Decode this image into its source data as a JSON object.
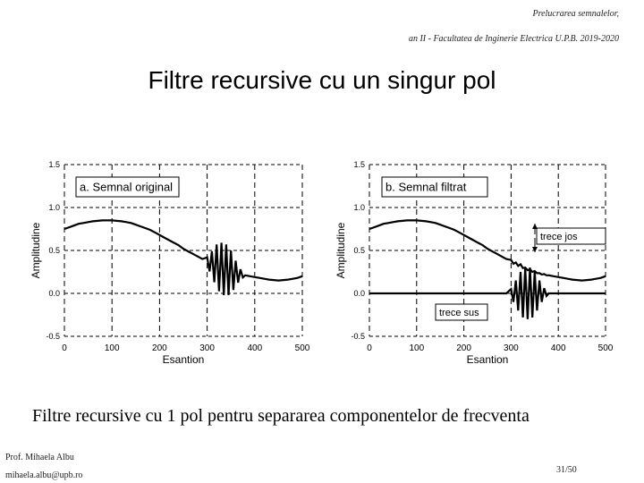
{
  "header": {
    "line1": "Prelucrarea semnalelor,",
    "line2": "an II - Facultatea de Inginerie Electrica U.P.B. 2019-2020"
  },
  "title": "Filtre recursive cu un singur pol",
  "caption": "Filtre recursive cu 1 pol pentru separarea componentelor de frecventa",
  "footer": {
    "author": "Prof. Mihaela Albu",
    "email": "mihaela.albu@upb.ro",
    "page": "31/50"
  },
  "chart_data": [
    {
      "type": "line",
      "annotations": [
        "a. Semnal original"
      ],
      "xlabel": "Esantion",
      "ylabel": "Amplitudine",
      "xlim": [
        0,
        500
      ],
      "xticks": [
        0,
        100,
        200,
        300,
        400,
        500
      ],
      "ylim": [
        -0.5,
        1.5
      ],
      "yticks": [
        -0.5,
        {
          "value": 0,
          "label": "0.0"
        },
        0.5,
        {
          "value": 1,
          "label": "1.0"
        },
        1.5
      ],
      "grid": true,
      "x": [
        0,
        10,
        20,
        30,
        40,
        50,
        60,
        70,
        80,
        90,
        100,
        110,
        120,
        130,
        140,
        150,
        160,
        170,
        180,
        190,
        200,
        210,
        220,
        230,
        240,
        250,
        260,
        270,
        280,
        290,
        300,
        305,
        310,
        315,
        320,
        325,
        330,
        335,
        340,
        345,
        350,
        355,
        360,
        365,
        370,
        375,
        380,
        390,
        400,
        410,
        420,
        430,
        440,
        450,
        460,
        470,
        480,
        490,
        500
      ],
      "series": [
        {
          "color": "#000000",
          "values": [
            0.75,
            0.77,
            0.79,
            0.81,
            0.82,
            0.83,
            0.84,
            0.845,
            0.85,
            0.85,
            0.85,
            0.845,
            0.84,
            0.83,
            0.82,
            0.8,
            0.78,
            0.76,
            0.74,
            0.71,
            0.68,
            0.65,
            0.62,
            0.59,
            0.56,
            0.52,
            0.49,
            0.46,
            0.43,
            0.4,
            0.42,
            0.255,
            0.49,
            0.13,
            0.57,
            0.025,
            0.59,
            -0.02,
            0.57,
            -0.02,
            0.5,
            0.04,
            0.38,
            0.125,
            0.28,
            0.185,
            0.21,
            0.2,
            0.19,
            0.18,
            0.17,
            0.16,
            0.155,
            0.15,
            0.155,
            0.16,
            0.17,
            0.18,
            0.2
          ]
        }
      ]
    },
    {
      "type": "line",
      "annotations": [
        "b. Semnal filtrat",
        "trece jos",
        "trece sus"
      ],
      "xlabel": "Esantion",
      "ylabel": "Amplitudine",
      "xlim": [
        0,
        500
      ],
      "xticks": [
        0,
        100,
        200,
        300,
        400,
        500
      ],
      "ylim": [
        -0.5,
        1.5
      ],
      "yticks": [
        -0.5,
        {
          "value": 0,
          "label": "0.0"
        },
        0.5,
        {
          "value": 1,
          "label": "1.0"
        },
        1.5
      ],
      "grid": true,
      "x": [
        0,
        10,
        20,
        30,
        40,
        50,
        60,
        70,
        80,
        90,
        100,
        110,
        120,
        130,
        140,
        150,
        160,
        170,
        180,
        190,
        200,
        210,
        220,
        230,
        240,
        250,
        260,
        270,
        280,
        290,
        300,
        305,
        310,
        315,
        320,
        325,
        330,
        335,
        340,
        345,
        350,
        355,
        360,
        365,
        370,
        375,
        380,
        390,
        400,
        410,
        420,
        430,
        440,
        450,
        460,
        470,
        480,
        490,
        500
      ],
      "series": [
        {
          "color": "#000000",
          "values": [
            0.75,
            0.77,
            0.79,
            0.81,
            0.82,
            0.83,
            0.84,
            0.845,
            0.85,
            0.85,
            0.85,
            0.845,
            0.84,
            0.83,
            0.82,
            0.8,
            0.78,
            0.76,
            0.74,
            0.71,
            0.68,
            0.65,
            0.62,
            0.59,
            0.56,
            0.52,
            0.49,
            0.46,
            0.43,
            0.4,
            0.39,
            0.345,
            0.36,
            0.32,
            0.34,
            0.295,
            0.3,
            0.27,
            0.28,
            0.25,
            0.26,
            0.235,
            0.235,
            0.22,
            0.225,
            0.21,
            0.21,
            0.2,
            0.19,
            0.18,
            0.17,
            0.16,
            0.155,
            0.15,
            0.155,
            0.16,
            0.17,
            0.18,
            0.2
          ]
        },
        {
          "color": "#000000",
          "values": [
            0,
            0,
            0,
            0,
            0,
            0,
            0,
            0,
            0,
            0,
            0,
            0,
            0,
            0,
            0,
            0,
            0,
            0,
            0,
            0,
            0,
            0,
            0,
            0,
            0,
            0,
            0,
            0,
            0,
            0,
            0.05,
            -0.1,
            0.15,
            -0.2,
            0.25,
            -0.28,
            0.3,
            -0.3,
            0.3,
            -0.28,
            0.25,
            -0.2,
            0.15,
            -0.1,
            0.06,
            -0.03,
            0,
            0,
            0,
            0,
            0,
            0,
            0,
            0,
            0,
            0,
            0,
            0,
            0
          ]
        }
      ]
    }
  ]
}
